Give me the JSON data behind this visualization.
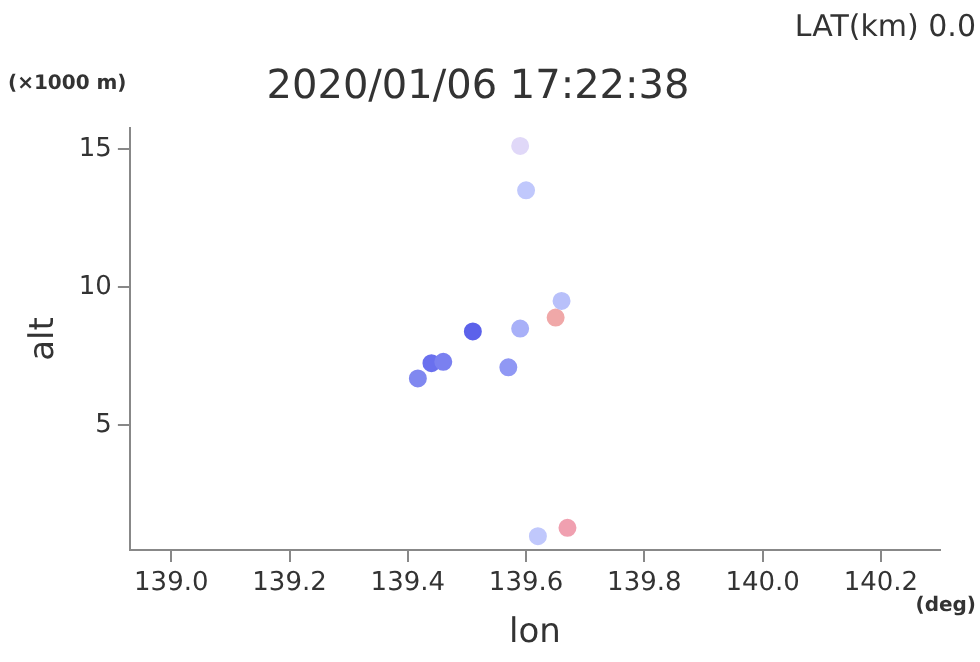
{
  "chart_data": {
    "type": "scatter",
    "title": "2020/01/06 17:22:38",
    "xlabel": "lon",
    "ylabel": "alt",
    "annotations": [
      "LAT(km) 0.0",
      "(×1000 m)",
      "(deg)"
    ],
    "series": [
      {
        "x": [
          139.417,
          139.44,
          139.46,
          139.51,
          139.57,
          139.59,
          139.65,
          139.66,
          139.6,
          139.59,
          139.67,
          139.62
        ],
        "values": [
          6.7,
          7.25,
          7.3,
          8.4,
          7.1,
          8.5,
          8.9,
          9.5,
          13.5,
          15.1,
          1.3,
          1.0
        ],
        "colors": [
          "#8088f0",
          "#6a70ee",
          "#7a80f0",
          "#5c62ea",
          "#9098f4",
          "#a8b0f8",
          "#f0a8a8",
          "#b8c0fa",
          "#c0c8fc",
          "#e0d8f8",
          "#f0a0b0",
          "#c0c8fc"
        ]
      }
    ],
    "xlim": [
      138.93,
      140.3
    ],
    "ylim": [
      0.5,
      15.75
    ],
    "xticks": [
      {
        "value": 139.0,
        "label": "139.0"
      },
      {
        "value": 139.2,
        "label": "139.2"
      },
      {
        "value": 139.4,
        "label": "139.4"
      },
      {
        "value": 139.6,
        "label": "139.6"
      },
      {
        "value": 139.8,
        "label": "139.8"
      },
      {
        "value": 140.0,
        "label": "140.0"
      },
      {
        "value": 140.2,
        "label": "140.2"
      }
    ],
    "yticks": [
      5,
      10,
      15
    ],
    "marker": "circle",
    "grid": false,
    "legend": false
  }
}
